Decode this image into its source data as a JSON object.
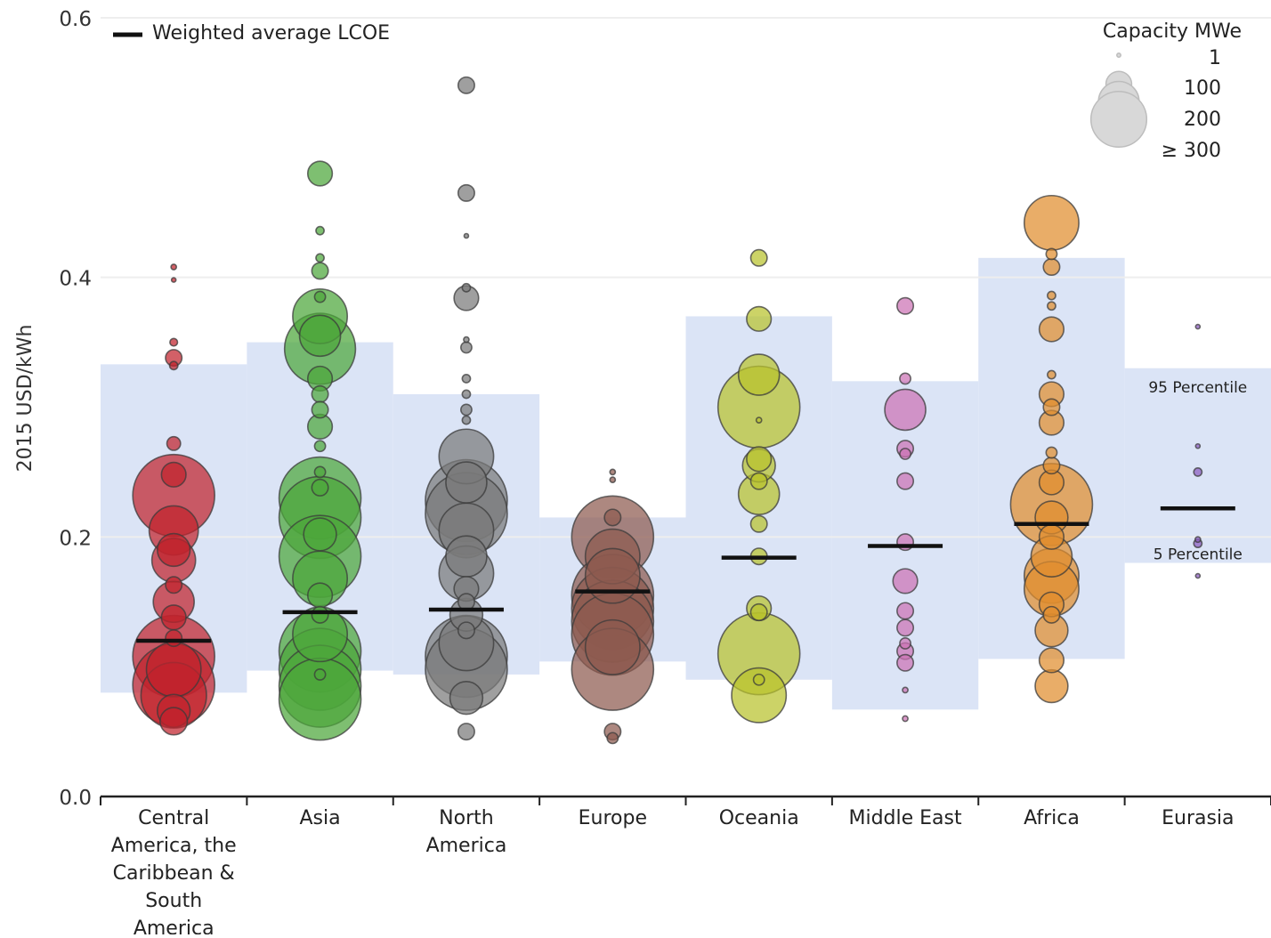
{
  "chart_data": {
    "type": "scatter",
    "ylabel": "2015 USD/kWh",
    "ylim": [
      0,
      0.6
    ],
    "y_ticks": [
      "0.0",
      "0.2",
      "0.4",
      "0.6"
    ],
    "legend": {
      "average_label": "Weighted average LCOE",
      "size_title": "Capacity MWe",
      "size_labels": [
        "1",
        "100",
        "200",
        "≥ 300"
      ],
      "size_values": [
        1,
        100,
        200,
        300
      ],
      "placement": "top"
    },
    "percentile_labels": {
      "upper": "95 Percentile",
      "lower": "5 Percentile"
    },
    "categories": [
      {
        "label_lines": [
          "Central",
          "America, the",
          "Caribbean &",
          "South",
          "America"
        ],
        "color": "#c0222c",
        "p5": 0.08,
        "p95": 0.333,
        "weighted_avg": 0.12,
        "points": [
          [
            0.408,
            20
          ],
          [
            0.398,
            4
          ],
          [
            0.35,
            28
          ],
          [
            0.338,
            60
          ],
          [
            0.332,
            30
          ],
          [
            0.272,
            50
          ],
          [
            0.248,
            90
          ],
          [
            0.232,
            340
          ],
          [
            0.205,
            180
          ],
          [
            0.19,
            120
          ],
          [
            0.182,
            160
          ],
          [
            0.163,
            60
          ],
          [
            0.15,
            150
          ],
          [
            0.138,
            90
          ],
          [
            0.122,
            60
          ],
          [
            0.108,
            300
          ],
          [
            0.098,
            200
          ],
          [
            0.086,
            300
          ],
          [
            0.078,
            240
          ],
          [
            0.066,
            120
          ],
          [
            0.058,
            100
          ]
        ]
      },
      {
        "label_lines": [
          "Asia"
        ],
        "color": "#4ca63a",
        "p5": 0.097,
        "p95": 0.35,
        "weighted_avg": 0.142,
        "points": [
          [
            0.48,
            90
          ],
          [
            0.436,
            30
          ],
          [
            0.415,
            30
          ],
          [
            0.405,
            60
          ],
          [
            0.385,
            40
          ],
          [
            0.37,
            200
          ],
          [
            0.355,
            150
          ],
          [
            0.345,
            260
          ],
          [
            0.322,
            90
          ],
          [
            0.31,
            60
          ],
          [
            0.298,
            60
          ],
          [
            0.285,
            90
          ],
          [
            0.27,
            40
          ],
          [
            0.25,
            40
          ],
          [
            0.238,
            60
          ],
          [
            0.23,
            300
          ],
          [
            0.215,
            300
          ],
          [
            0.202,
            120
          ],
          [
            0.185,
            300
          ],
          [
            0.168,
            200
          ],
          [
            0.155,
            90
          ],
          [
            0.14,
            60
          ],
          [
            0.125,
            200
          ],
          [
            0.112,
            300
          ],
          [
            0.098,
            300
          ],
          [
            0.094,
            40
          ],
          [
            0.085,
            300
          ],
          [
            0.075,
            300
          ]
        ]
      },
      {
        "label_lines": [
          "North",
          "America"
        ],
        "color": "#7a7a7a",
        "p5": 0.094,
        "p95": 0.31,
        "weighted_avg": 0.144,
        "points": [
          [
            0.548,
            60
          ],
          [
            0.465,
            60
          ],
          [
            0.432,
            4
          ],
          [
            0.392,
            30
          ],
          [
            0.384,
            90
          ],
          [
            0.352,
            20
          ],
          [
            0.346,
            40
          ],
          [
            0.322,
            30
          ],
          [
            0.31,
            30
          ],
          [
            0.298,
            40
          ],
          [
            0.29,
            30
          ],
          [
            0.262,
            200
          ],
          [
            0.242,
            150
          ],
          [
            0.228,
            300
          ],
          [
            0.218,
            300
          ],
          [
            0.205,
            200
          ],
          [
            0.185,
            150
          ],
          [
            0.172,
            200
          ],
          [
            0.16,
            90
          ],
          [
            0.15,
            60
          ],
          [
            0.14,
            120
          ],
          [
            0.128,
            60
          ],
          [
            0.118,
            200
          ],
          [
            0.108,
            300
          ],
          [
            0.098,
            300
          ],
          [
            0.076,
            120
          ],
          [
            0.05,
            60
          ]
        ]
      },
      {
        "label_lines": [
          "Europe"
        ],
        "color": "#8e5a4f",
        "p5": 0.104,
        "p95": 0.215,
        "weighted_avg": 0.158,
        "points": [
          [
            0.25,
            20
          ],
          [
            0.244,
            20
          ],
          [
            0.215,
            60
          ],
          [
            0.2,
            300
          ],
          [
            0.185,
            200
          ],
          [
            0.17,
            200
          ],
          [
            0.155,
            300
          ],
          [
            0.145,
            300
          ],
          [
            0.135,
            300
          ],
          [
            0.125,
            300
          ],
          [
            0.115,
            200
          ],
          [
            0.098,
            300
          ],
          [
            0.05,
            60
          ],
          [
            0.045,
            40
          ]
        ]
      },
      {
        "label_lines": [
          "Oceania"
        ],
        "color": "#b8c22c",
        "p5": 0.09,
        "p95": 0.37,
        "weighted_avg": 0.184,
        "points": [
          [
            0.415,
            60
          ],
          [
            0.368,
            90
          ],
          [
            0.325,
            150
          ],
          [
            0.3,
            300
          ],
          [
            0.29,
            20
          ],
          [
            0.26,
            90
          ],
          [
            0.255,
            120
          ],
          [
            0.243,
            60
          ],
          [
            0.233,
            150
          ],
          [
            0.21,
            60
          ],
          [
            0.185,
            60
          ],
          [
            0.145,
            90
          ],
          [
            0.142,
            60
          ],
          [
            0.11,
            300
          ],
          [
            0.09,
            40
          ],
          [
            0.078,
            200
          ]
        ]
      },
      {
        "label_lines": [
          "Middle East"
        ],
        "color": "#cc72b4",
        "p5": 0.067,
        "p95": 0.32,
        "weighted_avg": 0.193,
        "points": [
          [
            0.378,
            60
          ],
          [
            0.322,
            40
          ],
          [
            0.298,
            150
          ],
          [
            0.268,
            60
          ],
          [
            0.264,
            40
          ],
          [
            0.243,
            60
          ],
          [
            0.196,
            60
          ],
          [
            0.166,
            90
          ],
          [
            0.143,
            60
          ],
          [
            0.13,
            60
          ],
          [
            0.118,
            40
          ],
          [
            0.112,
            60
          ],
          [
            0.103,
            60
          ],
          [
            0.082,
            20
          ],
          [
            0.06,
            20
          ]
        ]
      },
      {
        "label_lines": [
          "Africa"
        ],
        "color": "#e08e2e",
        "p5": 0.106,
        "p95": 0.415,
        "weighted_avg": 0.21,
        "points": [
          [
            0.442,
            200
          ],
          [
            0.418,
            40
          ],
          [
            0.408,
            60
          ],
          [
            0.386,
            30
          ],
          [
            0.378,
            30
          ],
          [
            0.36,
            90
          ],
          [
            0.325,
            30
          ],
          [
            0.31,
            90
          ],
          [
            0.3,
            60
          ],
          [
            0.288,
            90
          ],
          [
            0.265,
            40
          ],
          [
            0.255,
            60
          ],
          [
            0.242,
            90
          ],
          [
            0.225,
            300
          ],
          [
            0.215,
            120
          ],
          [
            0.2,
            90
          ],
          [
            0.185,
            150
          ],
          [
            0.17,
            200
          ],
          [
            0.16,
            200
          ],
          [
            0.148,
            90
          ],
          [
            0.14,
            60
          ],
          [
            0.128,
            120
          ],
          [
            0.105,
            90
          ],
          [
            0.085,
            120
          ]
        ]
      },
      {
        "label_lines": [
          "Eurasia"
        ],
        "color": "#8a5cbf",
        "p5": 0.18,
        "p95": 0.33,
        "weighted_avg": 0.222,
        "points": [
          [
            0.362,
            4
          ],
          [
            0.27,
            4
          ],
          [
            0.25,
            30
          ],
          [
            0.198,
            20
          ],
          [
            0.195,
            30
          ],
          [
            0.17,
            4
          ]
        ]
      }
    ]
  }
}
